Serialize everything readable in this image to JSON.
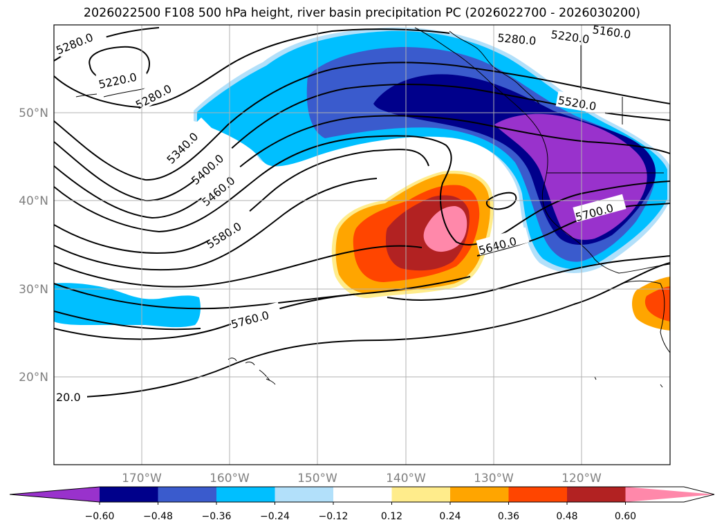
{
  "title": "2026022500 F108 500 hPa height, river basin precipitation PC (2026022700 - 2026030200)",
  "map": {
    "lat_labels": [
      "50°N",
      "40°N",
      "30°N",
      "20°N"
    ],
    "lon_labels": [
      "170°W",
      "160°W",
      "150°W",
      "140°W",
      "130°W",
      "120°W"
    ]
  },
  "contour_labels": [
    {
      "text": "5280.0"
    },
    {
      "text": "5220.0"
    },
    {
      "text": "5280.0"
    },
    {
      "text": "5280.0"
    },
    {
      "text": "5220.0"
    },
    {
      "text": "5160.0"
    },
    {
      "text": "5520.0"
    },
    {
      "text": "5340.0"
    },
    {
      "text": "5400.0"
    },
    {
      "text": "5460.0"
    },
    {
      "text": "5580.0"
    },
    {
      "text": "5640.0"
    },
    {
      "text": "5700.0"
    },
    {
      "text": "5760.0"
    },
    {
      "text": "20.0"
    }
  ],
  "colorbar": {
    "colors": [
      "#9932cc",
      "#00008b",
      "#3a5bcd",
      "#00bfff",
      "#b2e0fa",
      "#ffffff",
      "#ffec8b",
      "#ffa500",
      "#ff4500",
      "#b22222",
      "#ff88aa"
    ],
    "tick_labels": [
      "−0.60",
      "−0.48",
      "−0.36",
      "−0.24",
      "−0.12",
      "0.12",
      "0.24",
      "0.36",
      "0.48",
      "0.60"
    ]
  }
}
